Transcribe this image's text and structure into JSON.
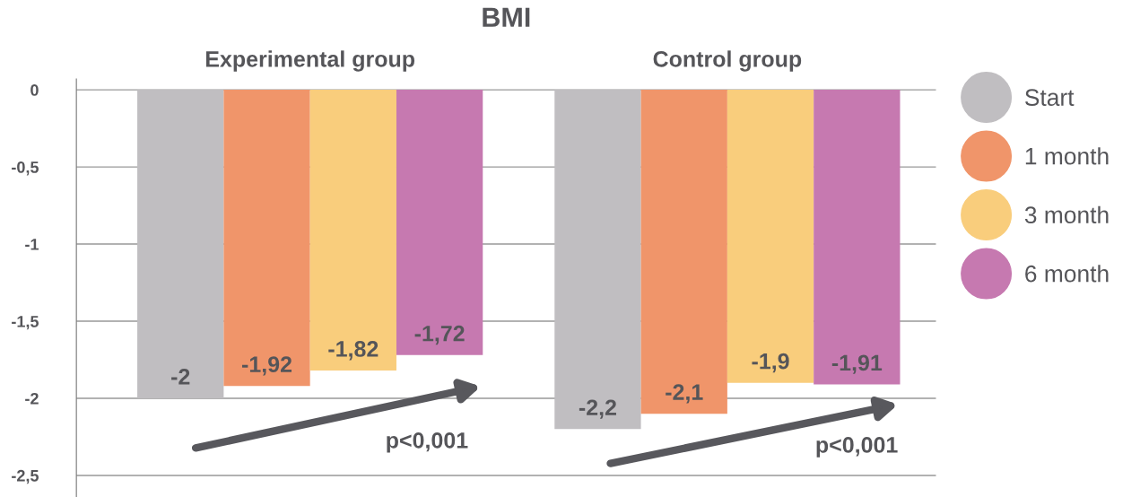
{
  "chart_data": {
    "type": "bar",
    "title": "BMI",
    "categories": [
      "Experimental group",
      "Control group"
    ],
    "series": [
      {
        "name": "Start",
        "color": "#c0bec1",
        "values": [
          -2,
          -2.2
        ],
        "value_labels": [
          "-2",
          "-2,2"
        ]
      },
      {
        "name": "1 month",
        "color": "#f0956a",
        "values": [
          -1.92,
          -2.1
        ],
        "value_labels": [
          "-1,92",
          "-2,1"
        ]
      },
      {
        "name": "3 month",
        "color": "#f9cd7c",
        "values": [
          -1.82,
          -1.9
        ],
        "value_labels": [
          "-1,82",
          "-1,9"
        ]
      },
      {
        "name": "6 month",
        "color": "#c679b0",
        "values": [
          -1.72,
          -1.91
        ],
        "value_labels": [
          "-1,72",
          "-1,91"
        ]
      }
    ],
    "ylim": [
      -2.64,
      0.07
    ],
    "yticks": [
      0,
      {
        "value": -0.5,
        "label": "-0,5"
      },
      {
        "value": -1,
        "label": "-1"
      },
      {
        "value": -1.5,
        "label": "-1,5"
      },
      {
        "value": -2,
        "label": "-2"
      },
      {
        "value": -2.5,
        "label": "-2,5"
      }
    ],
    "grid": "y",
    "legend": "right",
    "annotations": [
      "p<0,001",
      "p<0,001"
    ]
  }
}
